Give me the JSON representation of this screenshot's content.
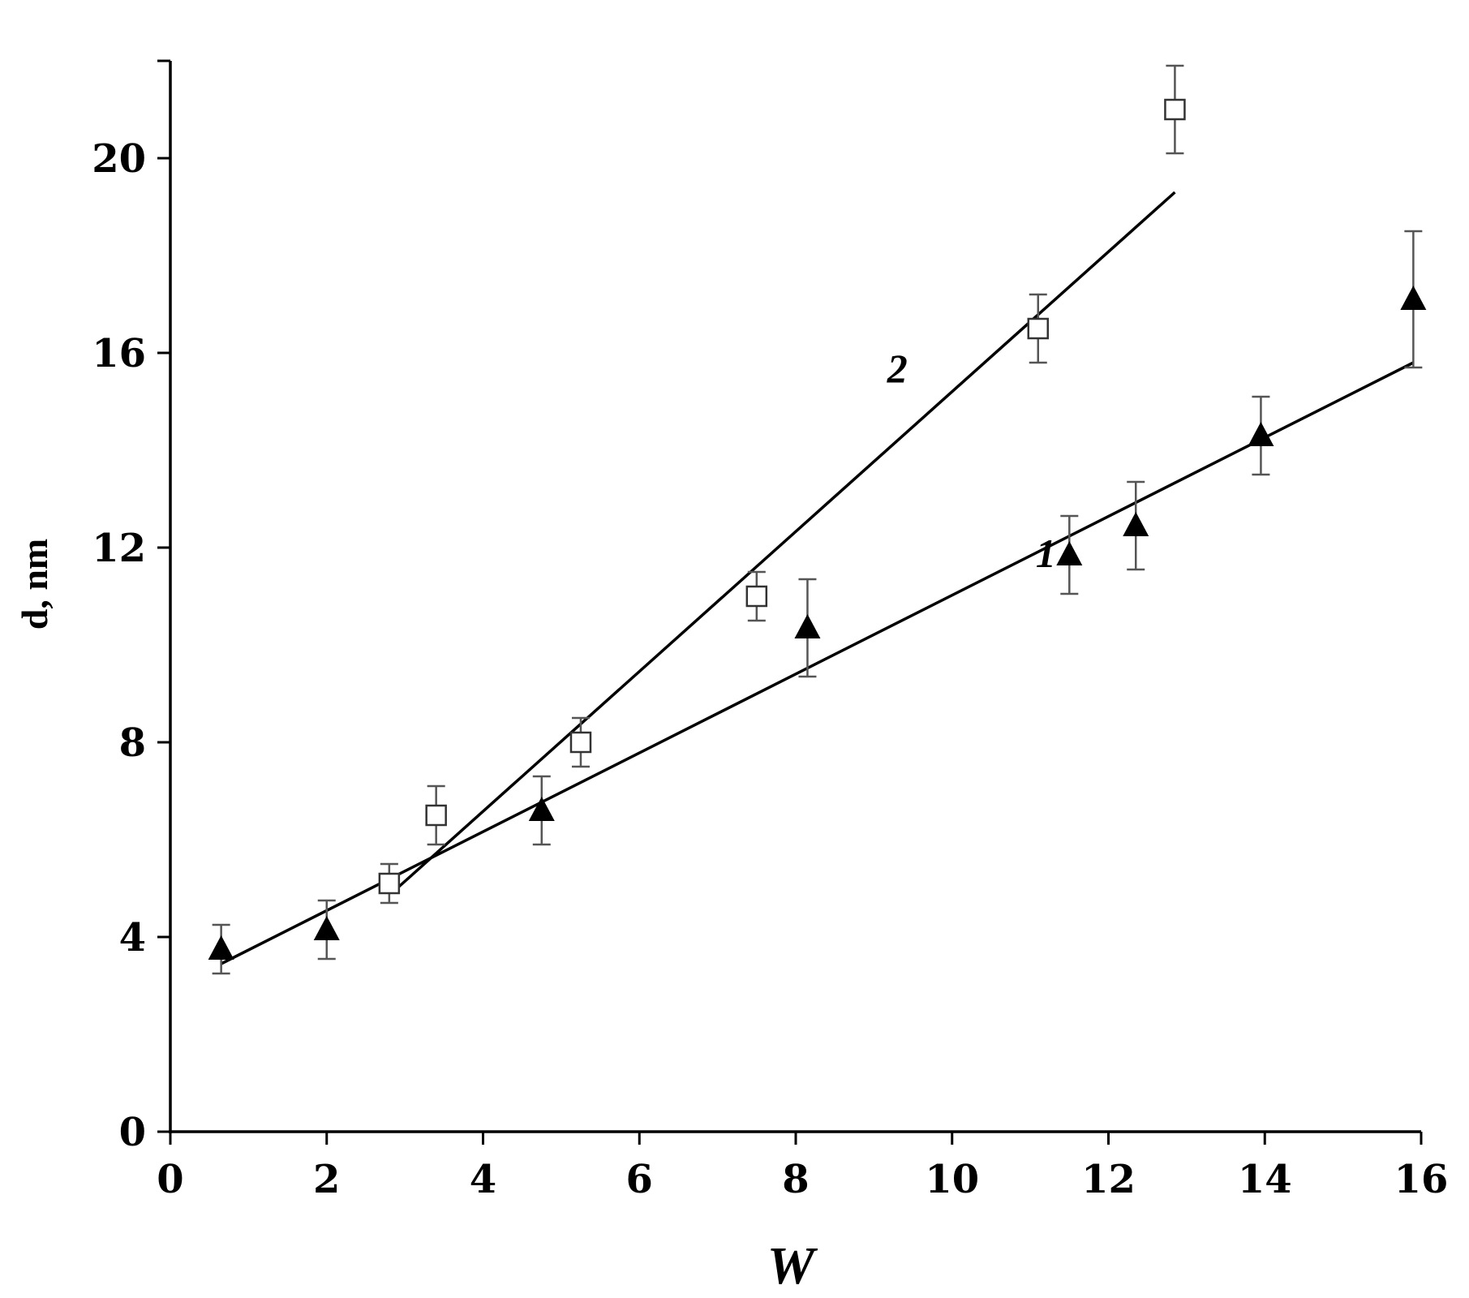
{
  "chart_data": {
    "type": "scatter",
    "title": "",
    "xlabel": "W",
    "ylabel": "d, nm",
    "xlim": [
      0,
      16
    ],
    "ylim": [
      0,
      22
    ],
    "xticks": [
      0,
      2,
      4,
      6,
      8,
      10,
      12,
      14,
      16
    ],
    "yticks": [
      0,
      4,
      8,
      12,
      16,
      20
    ],
    "grid": false,
    "series": [
      {
        "name": "1",
        "marker": "filled-triangle",
        "points": [
          {
            "x": 0.65,
            "y": 3.75,
            "err": 0.5
          },
          {
            "x": 2.0,
            "y": 4.15,
            "err": 0.6
          },
          {
            "x": 4.75,
            "y": 6.6,
            "err": 0.7
          },
          {
            "x": 8.15,
            "y": 10.35,
            "err": 1.0
          },
          {
            "x": 11.5,
            "y": 11.85,
            "err": 0.8
          },
          {
            "x": 12.35,
            "y": 12.45,
            "err": 0.9
          },
          {
            "x": 13.95,
            "y": 14.3,
            "err": 0.8
          },
          {
            "x": 15.9,
            "y": 17.1,
            "err": 1.4
          }
        ],
        "fit": {
          "x": [
            0.65,
            15.9
          ],
          "y": [
            3.45,
            15.8
          ]
        }
      },
      {
        "name": "2",
        "marker": "open-square",
        "points": [
          {
            "x": 2.8,
            "y": 5.1,
            "err": 0.4
          },
          {
            "x": 3.4,
            "y": 6.5,
            "err": 0.6
          },
          {
            "x": 5.25,
            "y": 8.0,
            "err": 0.5
          },
          {
            "x": 7.5,
            "y": 11.0,
            "err": 0.5
          },
          {
            "x": 11.1,
            "y": 16.5,
            "err": 0.7
          },
          {
            "x": 12.85,
            "y": 21.0,
            "err": 0.9
          }
        ],
        "fit": {
          "x": [
            2.9,
            12.85
          ],
          "y": [
            5.0,
            19.3
          ]
        }
      }
    ],
    "annotations": [
      {
        "text": "2",
        "x": 9.3,
        "y": 15.4
      },
      {
        "text": "1",
        "x": 11.2,
        "y": 11.6
      }
    ]
  }
}
